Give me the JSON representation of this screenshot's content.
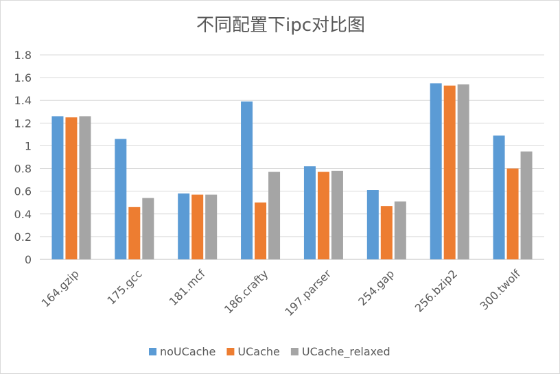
{
  "chart_data": {
    "type": "bar",
    "title": "不同配置下ipc对比图",
    "categories": [
      "164.gzip",
      "175.gcc",
      "181.mcf",
      "186.crafty",
      "197.parser",
      "254.gap",
      "256.bzip2",
      "300.twolf"
    ],
    "series": [
      {
        "name": "noUCache",
        "color": "#5B9BD5",
        "values": [
          1.26,
          1.06,
          0.58,
          1.39,
          0.82,
          0.61,
          1.55,
          1.09
        ]
      },
      {
        "name": "UCache",
        "color": "#ED7D31",
        "values": [
          1.25,
          0.46,
          0.57,
          0.5,
          0.77,
          0.47,
          1.53,
          0.8
        ]
      },
      {
        "name": "UCache_relaxed",
        "color": "#A5A5A5",
        "values": [
          1.26,
          0.54,
          0.57,
          0.77,
          0.78,
          0.51,
          1.54,
          0.95
        ]
      }
    ],
    "ylim": [
      0,
      1.8
    ],
    "yticks": [
      "0",
      "0.2",
      "0.4",
      "0.6",
      "0.8",
      "1",
      "1.2",
      "1.4",
      "1.6",
      "1.8"
    ],
    "ytick_values": [
      0,
      0.2,
      0.4,
      0.6,
      0.8,
      1.0,
      1.2,
      1.4,
      1.6,
      1.8
    ],
    "xlabel": "",
    "ylabel": "",
    "grid": true,
    "legend_position": "bottom"
  }
}
